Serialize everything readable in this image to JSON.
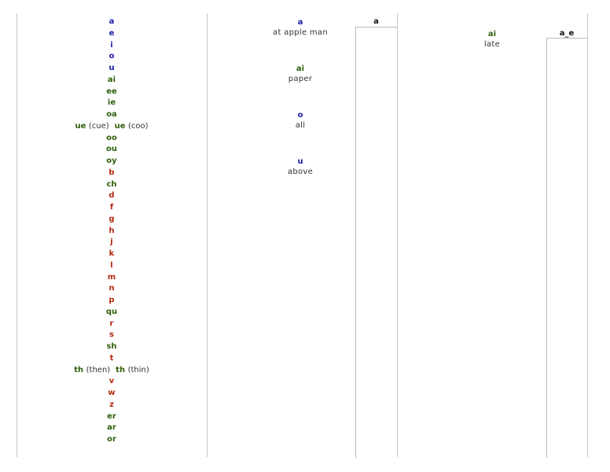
{
  "left_list": [
    {
      "text": "a",
      "color": "blue"
    },
    {
      "text": "e",
      "color": "blue"
    },
    {
      "text": "i",
      "color": "blue"
    },
    {
      "text": "o",
      "color": "blue"
    },
    {
      "text": "u",
      "color": "blue"
    },
    {
      "text": "ai",
      "color": "green"
    },
    {
      "text": "ee",
      "color": "green"
    },
    {
      "text": "ie",
      "color": "green"
    },
    {
      "text": "oa",
      "color": "green"
    },
    {
      "text": "ue",
      "color": "green",
      "note": "(cue)",
      "text2": "ue",
      "note2": "(coo)"
    },
    {
      "text": "oo",
      "color": "green"
    },
    {
      "text": "ou",
      "color": "green"
    },
    {
      "text": "oy",
      "color": "green"
    },
    {
      "text": "b",
      "color": "red"
    },
    {
      "text": "ch",
      "color": "green"
    },
    {
      "text": "d",
      "color": "red"
    },
    {
      "text": "f",
      "color": "red"
    },
    {
      "text": "g",
      "color": "red"
    },
    {
      "text": "h",
      "color": "red"
    },
    {
      "text": "j",
      "color": "red"
    },
    {
      "text": "k",
      "color": "red"
    },
    {
      "text": "l",
      "color": "red"
    },
    {
      "text": "m",
      "color": "red"
    },
    {
      "text": "n",
      "color": "red"
    },
    {
      "text": "p",
      "color": "red"
    },
    {
      "text": "qu",
      "color": "green"
    },
    {
      "text": "r",
      "color": "red"
    },
    {
      "text": "s",
      "color": "red"
    },
    {
      "text": "sh",
      "color": "green"
    },
    {
      "text": "t",
      "color": "red"
    },
    {
      "text": "th",
      "color": "green",
      "note": "(then)",
      "text2": "th",
      "note2": "(thin)"
    },
    {
      "text": "v",
      "color": "red"
    },
    {
      "text": "w",
      "color": "red"
    },
    {
      "text": "z",
      "color": "red"
    },
    {
      "text": "er",
      "color": "green"
    },
    {
      "text": "ar",
      "color": "green"
    },
    {
      "text": "or",
      "color": "green"
    }
  ],
  "middle": [
    {
      "key": "a",
      "color": "blue",
      "example": "at  apple  man"
    },
    {
      "key": "ai",
      "color": "green",
      "example": "paper"
    },
    {
      "key": "o",
      "color": "blue",
      "example": "all"
    },
    {
      "key": "u",
      "color": "blue",
      "example": "above"
    }
  ],
  "right": {
    "key": "ai",
    "color": "green",
    "example": "late"
  },
  "side_labels": {
    "first": "a",
    "second": "a_e"
  },
  "colors": {
    "blue": "#1a1aa8",
    "green": "#2f5f0a",
    "red": "#b22a12",
    "rule": "#c8c8c8"
  }
}
